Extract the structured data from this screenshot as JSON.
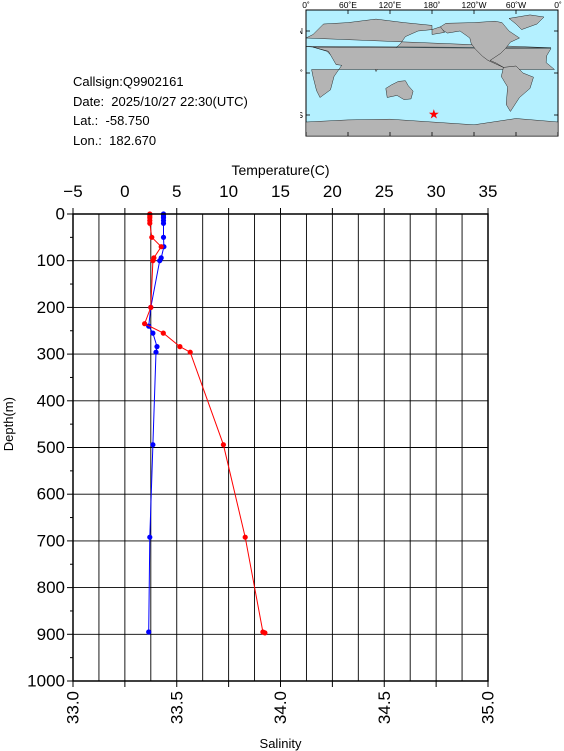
{
  "info": {
    "callsign": "Callsign:Q9902161",
    "date": "Date:  2025/10/27 22:30(UTC)",
    "lat": "Lat.:  -58.750",
    "lon": "Lon.:  182.670"
  },
  "map": {
    "lon_labels": [
      "0˚",
      "60˚E",
      "120˚E",
      "180˚",
      "120˚W",
      "60˚W",
      "0˚"
    ],
    "lat_labels": [
      "60˚N",
      "0˚",
      "60˚S"
    ],
    "ocean_color": "#b4f0ff",
    "land_color": "#b4b4b4",
    "marker": {
      "lat": -58.75,
      "lon": 182.67,
      "color": "#ff0000",
      "icon": "star"
    }
  },
  "chart_data": {
    "type": "line",
    "title": "",
    "top_axis": {
      "label": "Temperature(C)",
      "range": [
        -5,
        35
      ],
      "ticks": [
        -5,
        0,
        5,
        10,
        15,
        20,
        25,
        30,
        35
      ],
      "tick_labels": [
        "−5",
        "0",
        "5",
        "10",
        "15",
        "20",
        "25",
        "30",
        "35"
      ]
    },
    "bottom_axis": {
      "label": "Salinity",
      "range": [
        33.0,
        35.0
      ],
      "ticks": [
        33.0,
        33.5,
        34.0,
        34.5,
        35.0
      ],
      "tick_labels": [
        "33.0",
        "33.5",
        "34.0",
        "34.5",
        "35.0"
      ]
    },
    "y_axis": {
      "label": "Depth(m)",
      "range": [
        0,
        1000
      ],
      "inverted": true,
      "ticks": [
        0,
        100,
        200,
        300,
        400,
        500,
        600,
        700,
        800,
        900,
        1000
      ],
      "tick_labels": [
        "0",
        "100",
        "200",
        "300",
        "400",
        "500",
        "600",
        "700",
        "800",
        "900",
        "1000"
      ]
    },
    "grid": true,
    "series": [
      {
        "quantity": "Salinity",
        "color": "#0000ff",
        "axis": "bottom",
        "points": [
          {
            "depth": 0,
            "value": 33.436
          },
          {
            "depth": 4,
            "value": 33.436
          },
          {
            "depth": 8,
            "value": 33.436
          },
          {
            "depth": 14,
            "value": 33.436
          },
          {
            "depth": 20,
            "value": 33.436
          },
          {
            "depth": 50,
            "value": 33.436
          },
          {
            "depth": 70,
            "value": 33.438
          },
          {
            "depth": 94,
            "value": 33.425
          },
          {
            "depth": 100,
            "value": 33.418
          },
          {
            "depth": 200,
            "value": 33.375
          },
          {
            "depth": 240,
            "value": 33.365
          },
          {
            "depth": 255,
            "value": 33.385
          },
          {
            "depth": 284,
            "value": 33.405
          },
          {
            "depth": 296,
            "value": 33.4
          },
          {
            "depth": 494,
            "value": 33.385
          },
          {
            "depth": 692,
            "value": 33.37
          },
          {
            "depth": 895,
            "value": 33.365
          }
        ]
      },
      {
        "quantity": "Temperature",
        "color": "#ff0000",
        "axis": "top",
        "points": [
          {
            "depth": 0,
            "value": 2.4
          },
          {
            "depth": 4,
            "value": 2.4
          },
          {
            "depth": 8,
            "value": 2.4
          },
          {
            "depth": 14,
            "value": 2.4
          },
          {
            "depth": 20,
            "value": 2.4
          },
          {
            "depth": 50,
            "value": 2.6
          },
          {
            "depth": 70,
            "value": 3.5
          },
          {
            "depth": 94,
            "value": 2.8
          },
          {
            "depth": 100,
            "value": 2.7
          },
          {
            "depth": 200,
            "value": 2.5
          },
          {
            "depth": 235,
            "value": 1.9
          },
          {
            "depth": 255,
            "value": 3.7
          },
          {
            "depth": 284,
            "value": 5.3
          },
          {
            "depth": 296,
            "value": 6.3
          },
          {
            "depth": 494,
            "value": 9.5
          },
          {
            "depth": 692,
            "value": 11.6
          },
          {
            "depth": 895,
            "value": 13.3
          },
          {
            "depth": 897,
            "value": 13.5
          }
        ]
      }
    ]
  }
}
